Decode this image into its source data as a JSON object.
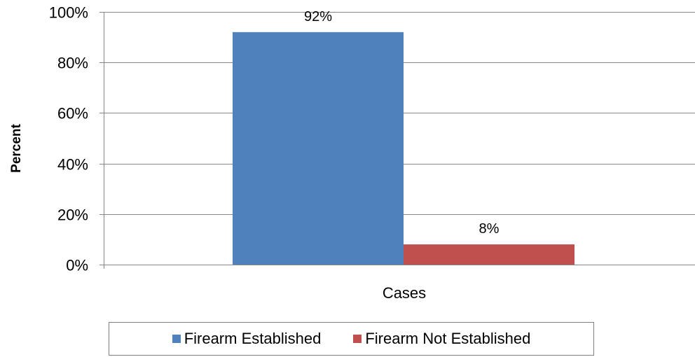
{
  "chart_data": {
    "type": "bar",
    "title": "",
    "xlabel": "Cases",
    "ylabel": "Percent",
    "categories": [
      "Cases"
    ],
    "ylim": [
      0,
      100
    ],
    "yticks": [
      0,
      20,
      40,
      60,
      80,
      100
    ],
    "ytick_labels": [
      "0%",
      "20%",
      "40%",
      "60%",
      "80%",
      "100%"
    ],
    "grid": true,
    "legend_position": "bottom",
    "series": [
      {
        "name": "Firearm Established",
        "values": [
          92
        ],
        "label": "92%",
        "color": "#4f81bd"
      },
      {
        "name": "Firearm Not Established",
        "values": [
          8
        ],
        "label": "8%",
        "color": "#c0504d"
      }
    ]
  }
}
